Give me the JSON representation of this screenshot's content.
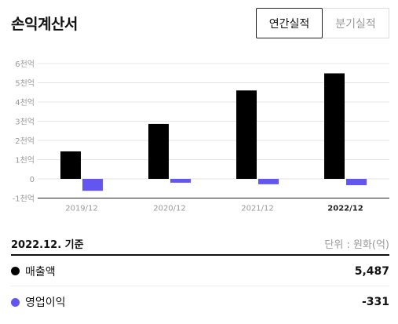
{
  "header": {
    "title": "손익계산서"
  },
  "tabs": [
    {
      "label": "연간실적",
      "active": true
    },
    {
      "label": "분기실적",
      "active": false
    }
  ],
  "colors": {
    "revenue": "#000000",
    "operating_income": "#6355f0",
    "grid": "#e5e5e5",
    "axis_text": "#999999"
  },
  "chart_data": {
    "type": "bar",
    "categories": [
      "2019/12",
      "2020/12",
      "2021/12",
      "2022/12"
    ],
    "series": [
      {
        "name": "매출액",
        "color": "#000000",
        "values": [
          1.43,
          2.86,
          4.6,
          5.49
        ]
      },
      {
        "name": "영업이익",
        "color": "#6355f0",
        "values": [
          -0.62,
          -0.2,
          -0.28,
          -0.33
        ]
      }
    ],
    "yticks": [
      {
        "value": 6,
        "label": "6천억"
      },
      {
        "value": 5,
        "label": "5천억"
      },
      {
        "value": 4,
        "label": "4천억"
      },
      {
        "value": 3,
        "label": "3천억"
      },
      {
        "value": 2,
        "label": "2천억"
      },
      {
        "value": 1,
        "label": "1천억"
      },
      {
        "value": 0,
        "label": "0"
      },
      {
        "value": -1,
        "label": "-1천억"
      }
    ],
    "ylim": [
      -1,
      6
    ],
    "grid": true,
    "highlight_category": "2022/12"
  },
  "summary": {
    "basis_label": "2022.12. 기준",
    "unit_label": "단위 : 원화(억)",
    "rows": [
      {
        "label": "매출액",
        "value": "5,487",
        "color": "#000000"
      },
      {
        "label": "영업이익",
        "value": "-331",
        "color": "#6355f0"
      }
    ]
  }
}
